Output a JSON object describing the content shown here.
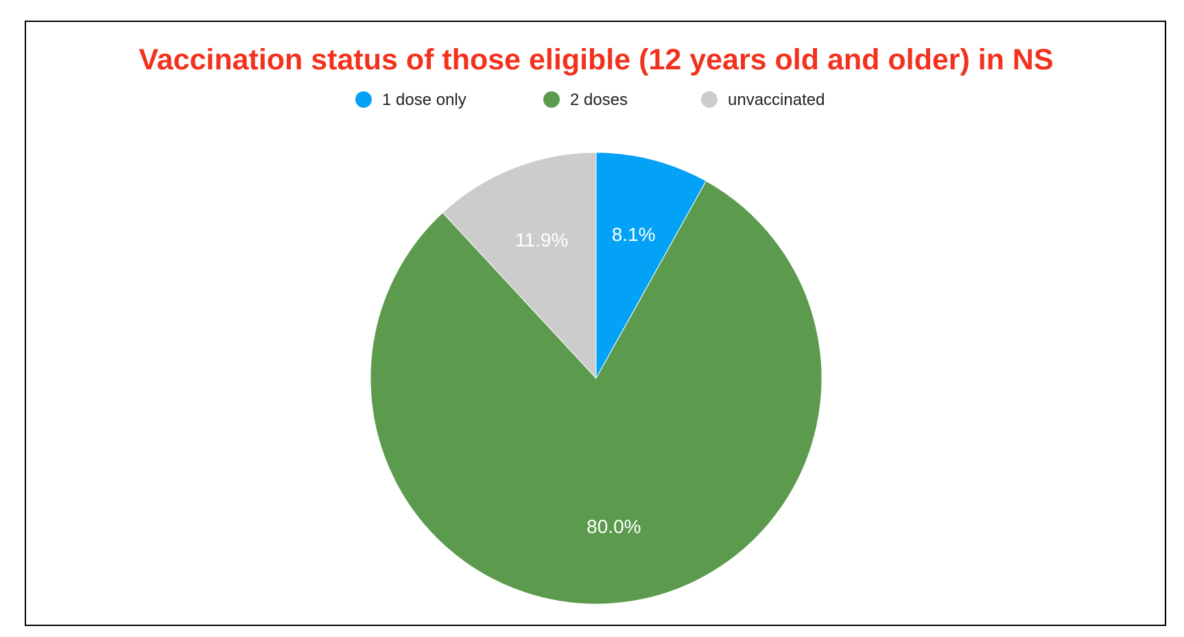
{
  "chart_data": {
    "type": "pie",
    "title": "Vaccination status of those eligible (12 years old and older) in NS",
    "categories": [
      "1 dose only",
      "2 doses",
      "unvaccinated"
    ],
    "values": [
      8.1,
      80.0,
      11.9
    ],
    "value_labels": [
      "8.1%",
      "80.0%",
      "11.9%"
    ],
    "colors": [
      "#03a2f6",
      "#5c9b4d",
      "#cccccc"
    ],
    "start_angle_deg": 0,
    "direction": "clockwise",
    "legend_position": "top"
  },
  "colors": {
    "title": "#f2321f",
    "border": "#000000",
    "background": "#ffffff"
  }
}
